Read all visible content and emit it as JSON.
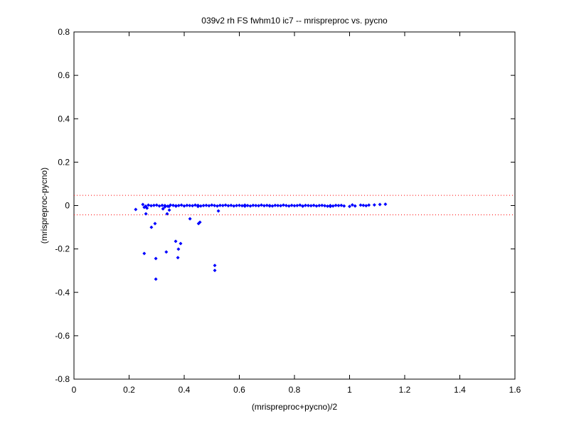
{
  "chart_data": {
    "type": "scatter",
    "title": "039v2 rh FS fwhm10 ic7 -- mrispreproc vs. pycno",
    "x_label": "(mrispreproc+pycno)/2",
    "y_label": "(mrispreproc-pycno)",
    "xlim": [
      0,
      1.6
    ],
    "ylim": [
      -0.8,
      0.8
    ],
    "xticks": [
      0,
      0.2,
      0.4,
      0.6,
      0.8,
      1,
      1.2,
      1.4,
      1.6
    ],
    "yticks": [
      -0.8,
      -0.6,
      -0.4,
      -0.2,
      0,
      0.2,
      0.4,
      0.6,
      0.8
    ],
    "reference_lines": [
      0.047,
      -0.043
    ],
    "reference_color": "#ff0000",
    "series": [
      {
        "color": "#0000ff",
        "x": [
          0.224,
          0.255,
          0.261,
          0.281,
          0.294,
          0.297,
          0.297,
          0.323,
          0.335,
          0.338,
          0.346,
          0.369,
          0.377,
          0.379,
          0.387,
          0.421,
          0.452,
          0.457,
          0.511,
          0.511,
          0.524,
          0.25,
          0.26,
          0.27,
          0.28,
          0.29,
          0.3,
          0.31,
          0.32,
          0.33,
          0.34,
          0.35,
          0.36,
          0.37,
          0.38,
          0.39,
          0.4,
          0.41,
          0.42,
          0.43,
          0.44,
          0.45,
          0.46,
          0.47,
          0.48,
          0.49,
          0.5,
          0.51,
          0.52,
          0.53,
          0.54,
          0.55,
          0.56,
          0.57,
          0.58,
          0.59,
          0.6,
          0.61,
          0.62,
          0.63,
          0.64,
          0.65,
          0.66,
          0.67,
          0.68,
          0.69,
          0.7,
          0.71,
          0.72,
          0.73,
          0.74,
          0.75,
          0.76,
          0.77,
          0.78,
          0.79,
          0.8,
          0.81,
          0.82,
          0.83,
          0.84,
          0.85,
          0.86,
          0.87,
          0.88,
          0.89,
          0.9,
          0.91,
          0.92,
          0.93,
          0.94,
          0.95,
          0.255,
          0.265,
          0.33,
          0.345,
          0.37,
          0.45,
          0.62,
          0.71,
          0.83,
          0.93,
          0.96,
          0.97,
          0.98,
          1.0,
          1.01,
          1.02,
          1.04,
          1.05,
          1.06,
          1.07,
          1.09,
          1.11,
          1.13
        ],
        "values": [
          -0.018,
          -0.221,
          -0.038,
          -0.1,
          -0.083,
          -0.244,
          -0.339,
          -0.015,
          -0.214,
          -0.038,
          -0.021,
          -0.165,
          -0.24,
          -0.201,
          -0.175,
          -0.061,
          -0.083,
          -0.077,
          -0.276,
          -0.299,
          -0.025,
          0.005,
          -0.003,
          0.002,
          -0.001,
          0.001,
          0.002,
          -0.002,
          0.001,
          0.0,
          -0.003,
          0.002,
          0.001,
          -0.001,
          0.0,
          0.002,
          -0.002,
          0.001,
          0.0,
          -0.001,
          0.002,
          0.001,
          -0.002,
          0.0,
          0.001,
          -0.001,
          0.002,
          0.0,
          -0.002,
          0.001,
          0.0,
          0.002,
          -0.001,
          0.001,
          -0.002,
          0.0,
          0.001,
          -0.001,
          0.002,
          0.0,
          -0.002,
          0.001,
          0.0,
          -0.001,
          0.002,
          -0.001,
          0.001,
          0.0,
          -0.002,
          0.001,
          0.0,
          -0.001,
          0.002,
          0.0,
          -0.002,
          0.001,
          -0.001,
          0.0,
          0.002,
          -0.002,
          0.001,
          0.0,
          -0.001,
          0.001,
          -0.002,
          0.0,
          0.001,
          -0.001,
          -0.003,
          0.0,
          -0.002,
          0.001,
          -0.008,
          -0.012,
          -0.006,
          -0.004,
          -0.003,
          -0.004,
          -0.003,
          -0.002,
          -0.003,
          -0.004,
          0.0,
          0.001,
          -0.002,
          -0.004,
          0.003,
          -0.002,
          0.002,
          0.001,
          -0.001,
          0.002,
          0.003,
          0.005,
          0.006
        ]
      }
    ]
  }
}
